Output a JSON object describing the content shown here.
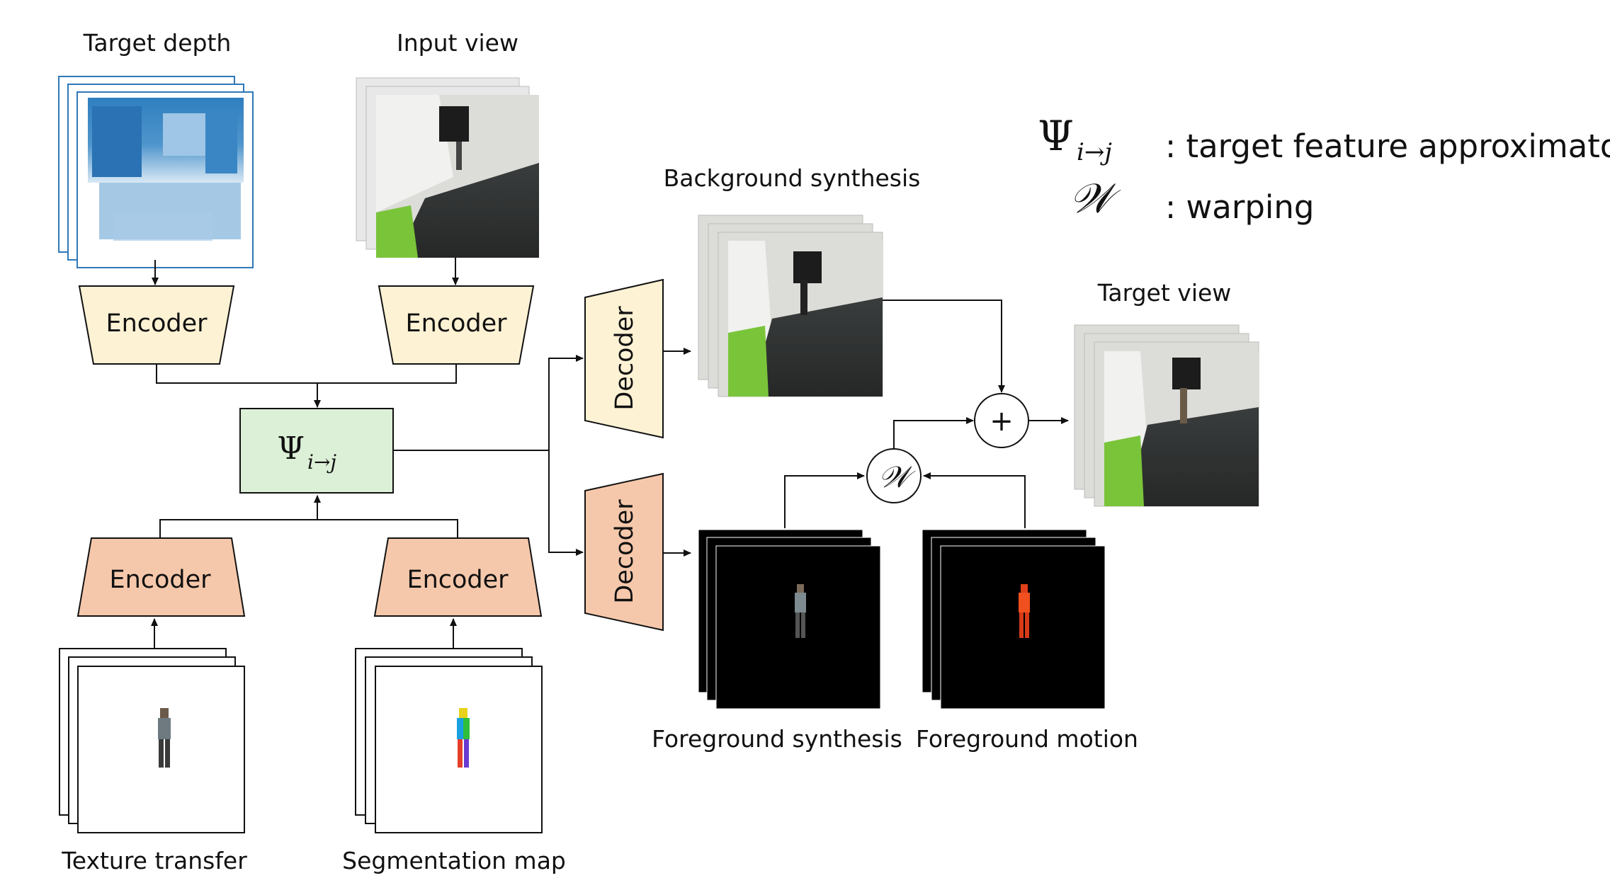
{
  "labels": {
    "target_depth": "Target depth",
    "input_view": "Input view",
    "texture_transfer": "Texture transfer",
    "segmentation_map": "Segmentation map",
    "background_synthesis": "Background synthesis",
    "foreground_synthesis": "Foreground synthesis",
    "foreground_motion": "Foreground motion",
    "target_view": "Target view"
  },
  "blocks": {
    "encoder": "Encoder",
    "decoder": "Decoder",
    "psi_main": "Ψ",
    "psi_sub": "i→j",
    "warp_symbol": "𝒲",
    "plus_symbol": "+"
  },
  "legend": {
    "psi_symbol": "Ψ",
    "psi_sub": "i→j",
    "psi_desc": ": target feature approximator",
    "warp_symbol": "𝒲",
    "warp_desc": ": warping"
  },
  "colors": {
    "encoder_top": "#fdf2d4",
    "encoder_bottom": "#f6c8ab",
    "psi_box": "#dcefd7",
    "line": "#111111"
  }
}
